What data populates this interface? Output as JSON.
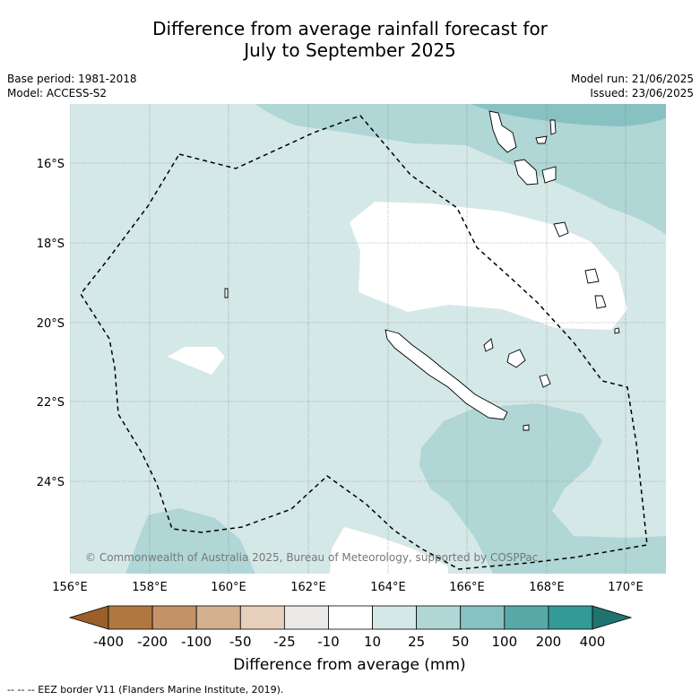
{
  "title_line1": "Difference from average rainfall forecast for",
  "title_line2": "July to September 2025",
  "base_period": "Base period: 1981-2018",
  "model": "Model: ACCESS-S2",
  "model_run": "Model run: 21/06/2025",
  "issued": "Issued: 23/06/2025",
  "lat_ticks": [
    "16°S",
    "18°S",
    "20°S",
    "22°S",
    "24°S"
  ],
  "lon_ticks": [
    "156°E",
    "158°E",
    "160°E",
    "162°E",
    "164°E",
    "166°E",
    "168°E",
    "170°E"
  ],
  "copyright": "© Commonwealth of Australia 2025, Bureau of Meteorology, supported by COSPPac",
  "colorbar": {
    "labels": [
      "-400",
      "-200",
      "-100",
      "-50",
      "-25",
      "-10",
      "10",
      "25",
      "50",
      "100",
      "200",
      "400"
    ],
    "colors": [
      "#9a5f2a",
      "#b07840",
      "#c39367",
      "#d4b091",
      "#e6cfbb",
      "#ebeae8",
      "#ffffff",
      "#d4e8e7",
      "#b0d6d6",
      "#88c1c1",
      "#5aa9a9",
      "#349a96",
      "#1f7370"
    ],
    "title": "Difference from average (mm)"
  },
  "footer": "--  --  -- EEZ border V11 (Flanders Marine Institute, 2019)."
}
